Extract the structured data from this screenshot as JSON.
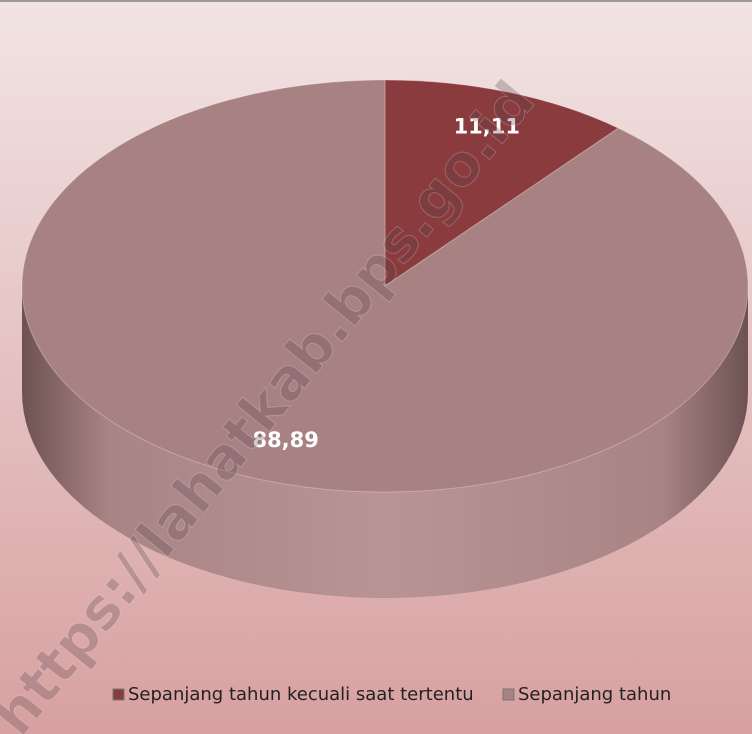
{
  "chart_data": {
    "type": "pie",
    "categories": [
      "Sepanjang tahun kecuali saat tertentu",
      "Sepanjang tahun"
    ],
    "values": [
      11.11,
      88.89
    ],
    "value_labels": [
      "11,11",
      "88,89"
    ],
    "colors": [
      "#8a3b3e",
      "#a88283"
    ],
    "legend": "bottom",
    "watermark": "https://lahatkab.bps.go.id"
  }
}
